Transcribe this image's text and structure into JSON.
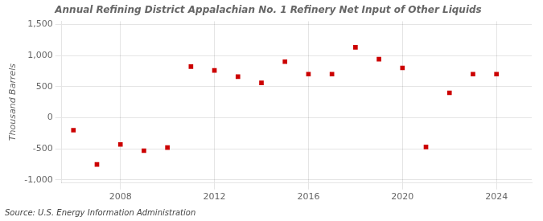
{
  "chart_data": {
    "type": "scatter",
    "title": "Annual Refining District Appalachian No. 1 Refinery Net Input of Other Liquids",
    "ylabel": "Thousand Barrels",
    "source": "Source: U.S. Energy Information Administration",
    "x": [
      2006,
      2007,
      2008,
      2009,
      2010,
      2011,
      2012,
      2013,
      2014,
      2015,
      2016,
      2017,
      2018,
      2019,
      2020,
      2021,
      2022,
      2023,
      2024
    ],
    "values": [
      -200,
      -750,
      -430,
      -530,
      -480,
      820,
      760,
      660,
      560,
      900,
      700,
      700,
      1130,
      940,
      800,
      -470,
      400,
      700,
      700
    ],
    "color": "#cc0000",
    "marker": "square",
    "xlim": [
      2005.5,
      2025.5
    ],
    "xticks": [
      2008,
      2012,
      2016,
      2020,
      2024
    ],
    "ylim": [
      -1050,
      1550
    ],
    "yticks": [
      {
        "value": -1000,
        "label": "-1,000"
      },
      -500,
      0,
      500,
      {
        "value": 1000,
        "label": "1,000"
      },
      {
        "value": 1500,
        "label": "1,500"
      }
    ],
    "grid": true
  }
}
